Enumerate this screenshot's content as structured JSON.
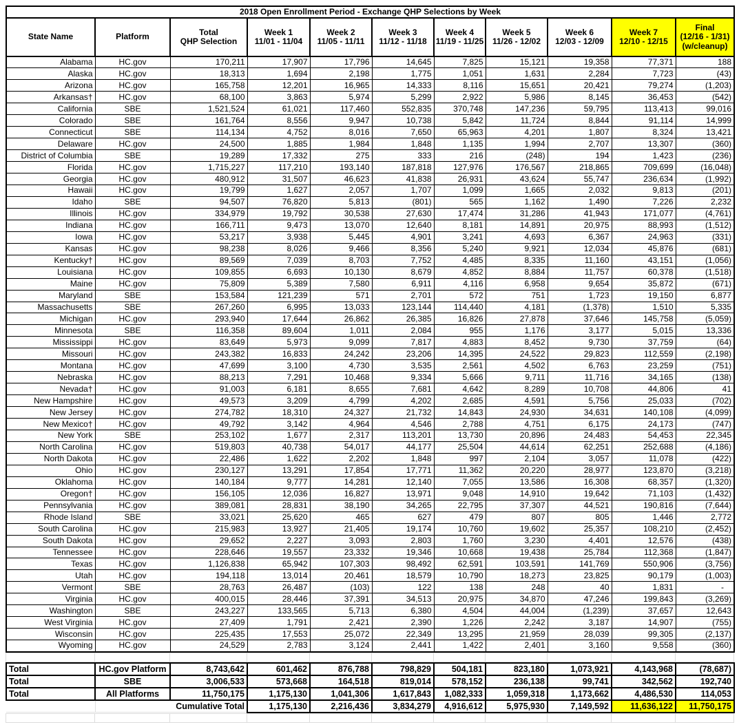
{
  "title": "2018 Open Enrollment Period - Exchange QHP Selections by Week",
  "colors": {
    "highlight": "#ffff00"
  },
  "columns": [
    {
      "lines": [
        "State Name"
      ],
      "highlight": false
    },
    {
      "lines": [
        "Platform"
      ],
      "highlight": false
    },
    {
      "lines": [
        "Total",
        "QHP Selection"
      ],
      "highlight": false
    },
    {
      "lines": [
        "Week 1",
        "11/01 - 11/04"
      ],
      "highlight": false
    },
    {
      "lines": [
        "Week 2",
        "11/05 - 11/11"
      ],
      "highlight": false
    },
    {
      "lines": [
        "Week 3",
        "11/12 - 11/18"
      ],
      "highlight": false
    },
    {
      "lines": [
        "Week 4",
        "11/19 - 11/25"
      ],
      "highlight": false
    },
    {
      "lines": [
        "Week 5",
        "11/26 - 12/02"
      ],
      "highlight": false
    },
    {
      "lines": [
        "Week 6",
        "12/03 - 12/09"
      ],
      "highlight": false
    },
    {
      "lines": [
        "Week 7",
        "12/10 - 12/15"
      ],
      "highlight": true
    },
    {
      "lines": [
        "Final",
        "(12/16 - 1/31)",
        "(w/cleanup)"
      ],
      "highlight": true
    }
  ],
  "rows": [
    [
      "Alabama",
      "HC.gov",
      "170,211",
      "17,907",
      "17,796",
      "14,645",
      "7,825",
      "15,121",
      "19,358",
      "77,371",
      "188"
    ],
    [
      "Alaska",
      "HC.gov",
      "18,313",
      "1,694",
      "2,198",
      "1,775",
      "1,051",
      "1,631",
      "2,284",
      "7,723",
      "(43)"
    ],
    [
      "Arizona",
      "HC.gov",
      "165,758",
      "12,201",
      "16,965",
      "14,333",
      "8,116",
      "15,651",
      "20,421",
      "79,274",
      "(1,203)"
    ],
    [
      "Arkansas†",
      "HC.gov",
      "68,100",
      "3,863",
      "5,974",
      "5,299",
      "2,922",
      "5,986",
      "8,145",
      "36,453",
      "(542)"
    ],
    [
      "California",
      "SBE",
      "1,521,524",
      "61,021",
      "117,460",
      "552,835",
      "370,748",
      "147,236",
      "59,795",
      "113,413",
      "99,016"
    ],
    [
      "Colorado",
      "SBE",
      "161,764",
      "8,556",
      "9,947",
      "10,738",
      "5,842",
      "11,724",
      "8,844",
      "91,114",
      "14,999"
    ],
    [
      "Connecticut",
      "SBE",
      "114,134",
      "4,752",
      "8,016",
      "7,650",
      "65,963",
      "4,201",
      "1,807",
      "8,324",
      "13,421"
    ],
    [
      "Delaware",
      "HC.gov",
      "24,500",
      "1,885",
      "1,984",
      "1,848",
      "1,135",
      "1,994",
      "2,707",
      "13,307",
      "(360)"
    ],
    [
      "District of Columbia",
      "SBE",
      "19,289",
      "17,332",
      "275",
      "333",
      "216",
      "(248)",
      "194",
      "1,423",
      "(236)"
    ],
    [
      "Florida",
      "HC.gov",
      "1,715,227",
      "117,210",
      "193,140",
      "187,818",
      "127,976",
      "176,567",
      "218,865",
      "709,699",
      "(16,048)"
    ],
    [
      "Georgia",
      "HC.gov",
      "480,912",
      "31,507",
      "46,623",
      "41,838",
      "26,931",
      "43,624",
      "55,747",
      "236,634",
      "(1,992)"
    ],
    [
      "Hawaii",
      "HC.gov",
      "19,799",
      "1,627",
      "2,057",
      "1,707",
      "1,099",
      "1,665",
      "2,032",
      "9,813",
      "(201)"
    ],
    [
      "Idaho",
      "SBE",
      "94,507",
      "76,820",
      "5,813",
      "(801)",
      "565",
      "1,162",
      "1,490",
      "7,226",
      "2,232"
    ],
    [
      "Illinois",
      "HC.gov",
      "334,979",
      "19,792",
      "30,538",
      "27,630",
      "17,474",
      "31,286",
      "41,943",
      "171,077",
      "(4,761)"
    ],
    [
      "Indiana",
      "HC.gov",
      "166,711",
      "9,473",
      "13,070",
      "12,640",
      "8,181",
      "14,891",
      "20,975",
      "88,993",
      "(1,512)"
    ],
    [
      "Iowa",
      "HC.gov",
      "53,217",
      "3,938",
      "5,445",
      "4,901",
      "3,241",
      "4,693",
      "6,367",
      "24,963",
      "(331)"
    ],
    [
      "Kansas",
      "HC.gov",
      "98,238",
      "8,026",
      "9,466",
      "8,356",
      "5,240",
      "9,921",
      "12,034",
      "45,876",
      "(681)"
    ],
    [
      "Kentucky†",
      "HC.gov",
      "89,569",
      "7,039",
      "8,703",
      "7,752",
      "4,485",
      "8,335",
      "11,160",
      "43,151",
      "(1,056)"
    ],
    [
      "Louisiana",
      "HC.gov",
      "109,855",
      "6,693",
      "10,130",
      "8,679",
      "4,852",
      "8,884",
      "11,757",
      "60,378",
      "(1,518)"
    ],
    [
      "Maine",
      "HC.gov",
      "75,809",
      "5,389",
      "7,580",
      "6,911",
      "4,116",
      "6,958",
      "9,654",
      "35,872",
      "(671)"
    ],
    [
      "Maryland",
      "SBE",
      "153,584",
      "121,239",
      "571",
      "2,701",
      "572",
      "751",
      "1,723",
      "19,150",
      "6,877"
    ],
    [
      "Massachusetts",
      "SBE",
      "267,260",
      "6,995",
      "13,033",
      "123,144",
      "114,440",
      "4,181",
      "(1,378)",
      "1,510",
      "5,335"
    ],
    [
      "Michigan",
      "HC.gov",
      "293,940",
      "17,644",
      "26,862",
      "26,385",
      "16,826",
      "27,878",
      "37,646",
      "145,758",
      "(5,059)"
    ],
    [
      "Minnesota",
      "SBE",
      "116,358",
      "89,604",
      "1,011",
      "2,084",
      "955",
      "1,176",
      "3,177",
      "5,015",
      "13,336"
    ],
    [
      "Mississippi",
      "HC.gov",
      "83,649",
      "5,973",
      "9,099",
      "7,817",
      "4,883",
      "8,452",
      "9,730",
      "37,759",
      "(64)"
    ],
    [
      "Missouri",
      "HC.gov",
      "243,382",
      "16,833",
      "24,242",
      "23,206",
      "14,395",
      "24,522",
      "29,823",
      "112,559",
      "(2,198)"
    ],
    [
      "Montana",
      "HC.gov",
      "47,699",
      "3,100",
      "4,730",
      "3,535",
      "2,561",
      "4,502",
      "6,763",
      "23,259",
      "(751)"
    ],
    [
      "Nebraska",
      "HC.gov",
      "88,213",
      "7,291",
      "10,468",
      "9,334",
      "5,666",
      "9,711",
      "11,716",
      "34,165",
      "(138)"
    ],
    [
      "Nevada†",
      "HC.gov",
      "91,003",
      "6,181",
      "8,655",
      "7,681",
      "4,642",
      "8,289",
      "10,708",
      "44,806",
      "41"
    ],
    [
      "New Hampshire",
      "HC.gov",
      "49,573",
      "3,209",
      "4,799",
      "4,202",
      "2,685",
      "4,591",
      "5,756",
      "25,033",
      "(702)"
    ],
    [
      "New Jersey",
      "HC.gov",
      "274,782",
      "18,310",
      "24,327",
      "21,732",
      "14,843",
      "24,930",
      "34,631",
      "140,108",
      "(4,099)"
    ],
    [
      "New Mexico†",
      "HC.gov",
      "49,792",
      "3,142",
      "4,964",
      "4,546",
      "2,788",
      "4,751",
      "6,175",
      "24,173",
      "(747)"
    ],
    [
      "New York",
      "SBE",
      "253,102",
      "1,677",
      "2,317",
      "113,201",
      "13,730",
      "20,896",
      "24,483",
      "54,453",
      "22,345"
    ],
    [
      "North Carolina",
      "HC.gov",
      "519,803",
      "40,738",
      "54,017",
      "44,177",
      "25,504",
      "44,614",
      "62,251",
      "252,688",
      "(4,186)"
    ],
    [
      "North Dakota",
      "HC.gov",
      "22,486",
      "1,622",
      "2,202",
      "1,848",
      "997",
      "2,104",
      "3,057",
      "11,078",
      "(422)"
    ],
    [
      "Ohio",
      "HC.gov",
      "230,127",
      "13,291",
      "17,854",
      "17,771",
      "11,362",
      "20,220",
      "28,977",
      "123,870",
      "(3,218)"
    ],
    [
      "Oklahoma",
      "HC.gov",
      "140,184",
      "9,777",
      "14,281",
      "12,140",
      "7,055",
      "13,586",
      "16,308",
      "68,357",
      "(1,320)"
    ],
    [
      "Oregon†",
      "HC.gov",
      "156,105",
      "12,036",
      "16,827",
      "13,971",
      "9,048",
      "14,910",
      "19,642",
      "71,103",
      "(1,432)"
    ],
    [
      "Pennsylvania",
      "HC.gov",
      "389,081",
      "28,831",
      "38,190",
      "34,265",
      "22,795",
      "37,307",
      "44,521",
      "190,816",
      "(7,644)"
    ],
    [
      "Rhode Island",
      "SBE",
      "33,021",
      "25,620",
      "465",
      "627",
      "479",
      "807",
      "805",
      "1,446",
      "2,772"
    ],
    [
      "South Carolina",
      "HC.gov",
      "215,983",
      "13,927",
      "21,405",
      "19,174",
      "10,760",
      "19,602",
      "25,357",
      "108,210",
      "(2,452)"
    ],
    [
      "South Dakota",
      "HC.gov",
      "29,652",
      "2,227",
      "3,093",
      "2,803",
      "1,760",
      "3,230",
      "4,401",
      "12,576",
      "(438)"
    ],
    [
      "Tennessee",
      "HC.gov",
      "228,646",
      "19,557",
      "23,332",
      "19,346",
      "10,668",
      "19,438",
      "25,784",
      "112,368",
      "(1,847)"
    ],
    [
      "Texas",
      "HC.gov",
      "1,126,838",
      "65,942",
      "107,303",
      "98,492",
      "62,591",
      "103,591",
      "141,769",
      "550,906",
      "(3,756)"
    ],
    [
      "Utah",
      "HC.gov",
      "194,118",
      "13,014",
      "20,461",
      "18,579",
      "10,790",
      "18,273",
      "23,825",
      "90,179",
      "(1,003)"
    ],
    [
      "Vermont",
      "SBE",
      "28,763",
      "26,487",
      "(103)",
      "122",
      "138",
      "248",
      "40",
      "1,831",
      "-"
    ],
    [
      "Virginia",
      "HC.gov",
      "400,015",
      "28,446",
      "37,391",
      "34,513",
      "20,975",
      "34,870",
      "47,246",
      "199,843",
      "(3,269)"
    ],
    [
      "Washington",
      "SBE",
      "243,227",
      "133,565",
      "5,713",
      "6,380",
      "4,504",
      "44,004",
      "(1,239)",
      "37,657",
      "12,643"
    ],
    [
      "West Virginia",
      "HC.gov",
      "27,409",
      "1,791",
      "2,421",
      "2,390",
      "1,226",
      "2,242",
      "3,187",
      "14,907",
      "(755)"
    ],
    [
      "Wisconsin",
      "HC.gov",
      "225,435",
      "17,553",
      "25,072",
      "22,349",
      "13,295",
      "21,959",
      "28,039",
      "99,305",
      "(2,137)"
    ],
    [
      "Wyoming",
      "HC.gov",
      "24,529",
      "2,783",
      "3,124",
      "2,441",
      "1,422",
      "2,401",
      "3,160",
      "9,558",
      "(360)"
    ]
  ],
  "totals": [
    [
      "Total",
      "HC.gov Platform",
      "8,743,642",
      "601,462",
      "876,788",
      "798,829",
      "504,181",
      "823,180",
      "1,073,921",
      "4,143,968",
      "(78,687)"
    ],
    [
      "Total",
      "SBE",
      "3,006,533",
      "573,668",
      "164,518",
      "819,014",
      "578,152",
      "236,138",
      "99,741",
      "342,562",
      "192,740"
    ],
    [
      "Total",
      "All Platforms",
      "11,750,175",
      "1,175,130",
      "1,041,306",
      "1,617,843",
      "1,082,333",
      "1,059,318",
      "1,173,662",
      "4,486,530",
      "114,053"
    ]
  ],
  "cumulative": {
    "label": "Cumulative Total",
    "values": [
      "1,175,130",
      "2,216,436",
      "3,834,279",
      "4,916,612",
      "5,975,930",
      "7,149,592",
      "11,636,122",
      "11,750,175"
    ],
    "highlight_from": 6
  }
}
